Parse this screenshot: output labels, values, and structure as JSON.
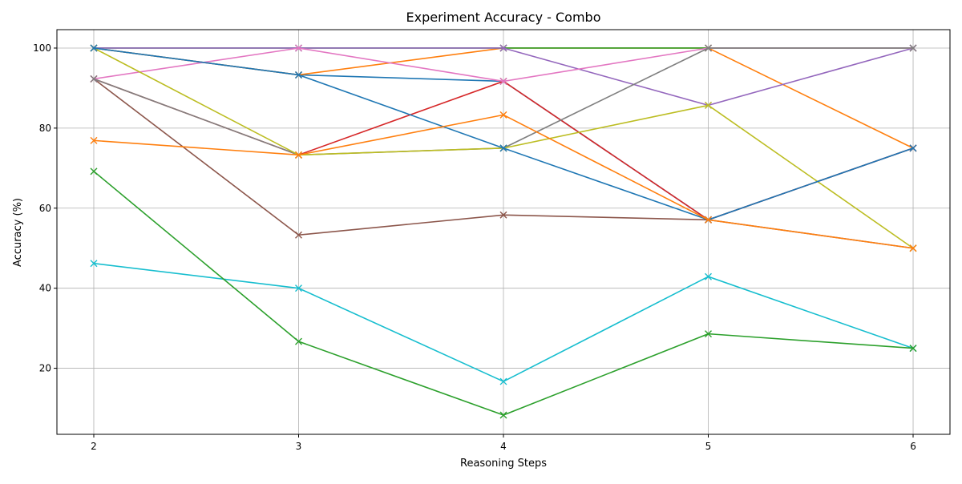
{
  "chart_data": {
    "type": "line",
    "title": "Experiment Accuracy - Combo",
    "xlabel": "Reasoning Steps",
    "ylabel": "Accuracy (%)",
    "x": [
      2,
      3,
      4,
      5,
      6
    ],
    "xlim": [
      1.82,
      6.18
    ],
    "ylim": [
      3.5,
      104.6
    ],
    "xticks": [
      2,
      3,
      4,
      5,
      6
    ],
    "yticks": [
      20,
      40,
      60,
      80,
      100
    ],
    "grid": true,
    "marker": "x",
    "series": [
      {
        "color": "#1f77b4",
        "values": [
          100,
          93.3,
          91.7,
          57.1,
          75
        ]
      },
      {
        "color": "#ff7f0e",
        "values": [
          100,
          93.3,
          100,
          100,
          75
        ]
      },
      {
        "color": "#2ca02c",
        "values": [
          100,
          100,
          100,
          100,
          100
        ]
      },
      {
        "color": "#d62728",
        "values": [
          92.3,
          73.3,
          91.7,
          57.1,
          75
        ]
      },
      {
        "color": "#9467bd",
        "values": [
          100,
          100,
          100,
          85.7,
          100
        ]
      },
      {
        "color": "#8c564b",
        "values": [
          92.3,
          53.3,
          58.3,
          57.1,
          50
        ]
      },
      {
        "color": "#e377c2",
        "values": [
          92.3,
          100,
          91.7,
          100,
          100
        ]
      },
      {
        "color": "#7f7f7f",
        "values": [
          92.3,
          73.3,
          75,
          100,
          100
        ]
      },
      {
        "color": "#bcbd22",
        "values": [
          100,
          73.3,
          75,
          85.7,
          50
        ]
      },
      {
        "color": "#17becf",
        "values": [
          46.2,
          40,
          16.7,
          42.9,
          25
        ]
      },
      {
        "color": "#1f77b4",
        "values": [
          100,
          93.3,
          75,
          57.1,
          75
        ]
      },
      {
        "color": "#ff7f0e",
        "values": [
          76.9,
          73.3,
          83.3,
          57.1,
          50
        ]
      },
      {
        "color": "#2ca02c",
        "values": [
          69.2,
          26.7,
          8.3,
          28.6,
          25
        ]
      }
    ]
  }
}
